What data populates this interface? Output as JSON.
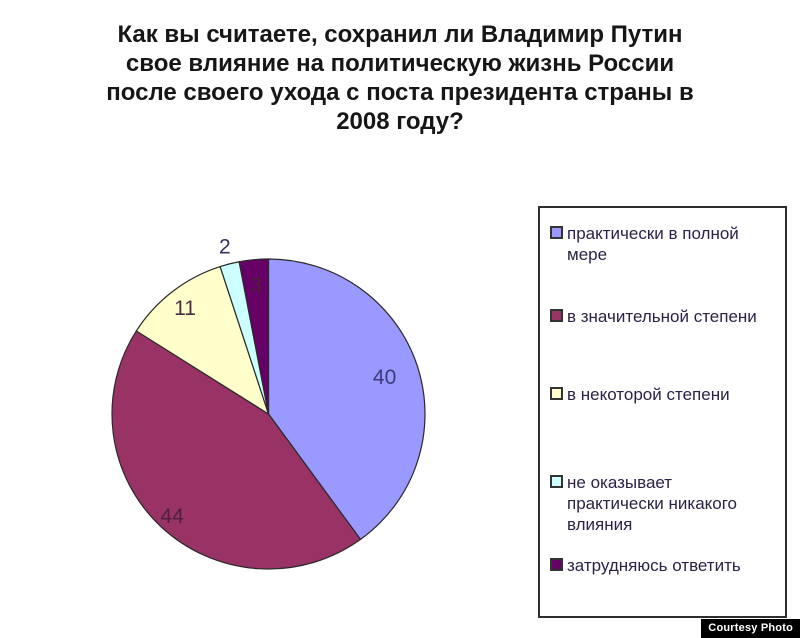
{
  "header": {
    "title_lines": [
      "Как вы считаете, сохранил ли Владимир Путин",
      "свое влияние на политическую жизнь России",
      "после своего ухода с поста президента страны в",
      "2008 году?"
    ]
  },
  "chart_data": {
    "type": "pie",
    "title": "Как вы считаете, сохранил ли Владимир Путин свое влияние на политическую жизнь России после своего ухода с поста президента страны в 2008 году?",
    "unit": "percent",
    "total": 100,
    "start_angle_deg": 0,
    "direction": "clockwise",
    "legend_position": "right",
    "slice_stroke_color": "#2a2a2a",
    "slices": [
      {
        "label": "практически в полной мере",
        "value": 40,
        "color": "#9999ff",
        "label_color": "#3d3a78",
        "label_r_frac": 0.78
      },
      {
        "label": "в значительной степени",
        "value": 44,
        "color": "#993366",
        "label_color": "#4d2040",
        "label_r_frac": 0.9
      },
      {
        "label": "в некоторой степени",
        "value": 11,
        "color": "#ffffcc",
        "label_color": "#4a2b45",
        "label_r_frac": 0.87
      },
      {
        "label": "не оказывает практически никакого влияния",
        "value": 2,
        "color": "#ccffff",
        "label_color": "#33335f",
        "label_r_frac": 1.12
      },
      {
        "label": "затрудняюсь ответить",
        "value": 3,
        "color": "#660066",
        "label_color": "#4d2030",
        "label_r_frac": 0.84
      }
    ]
  },
  "footer": {
    "credit": "Courtesy Photo"
  }
}
